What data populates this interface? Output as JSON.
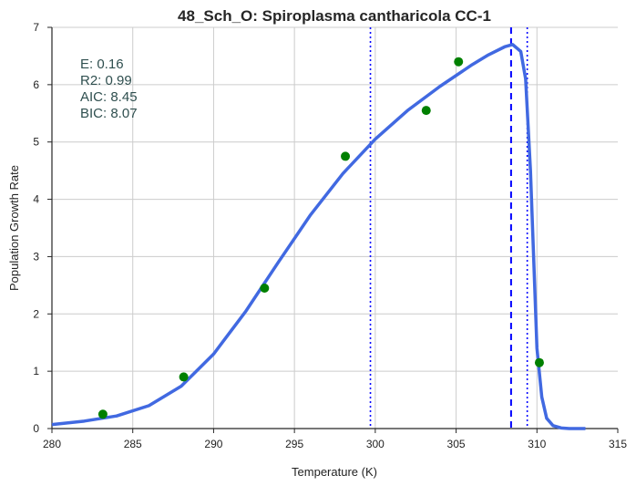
{
  "chart_data": {
    "type": "line",
    "title": "48_Sch_O: Spiroplasma cantharicola CC-1",
    "xlabel": "Temperature (K)",
    "ylabel": "Population Growth Rate",
    "xlim": [
      280,
      315
    ],
    "ylim": [
      0,
      7
    ],
    "xticks": [
      280,
      285,
      290,
      295,
      300,
      305,
      310,
      315
    ],
    "yticks": [
      0,
      1,
      2,
      3,
      4,
      5,
      6,
      7
    ],
    "xtick_labels": [
      "280",
      "285",
      "290",
      "295",
      "300",
      "305",
      "310",
      "315"
    ],
    "ytick_labels": [
      "0",
      "1",
      "2",
      "3",
      "4",
      "5",
      "6",
      "7"
    ],
    "grid": true,
    "stats": [
      "E:  0.16",
      "R2:  0.99",
      "AIC: 8.45",
      "BIC: 8.07"
    ],
    "colors": {
      "fit": "#4169e1",
      "points": "#008000",
      "vlines": "#0000ff",
      "grid": "#cccccc",
      "stats_text": "#2f4f4f"
    },
    "series": [
      {
        "kind": "points",
        "x": [
          283.15,
          288.15,
          293.15,
          298.15,
          303.15,
          305.15,
          310.15
        ],
        "y": [
          0.25,
          0.9,
          2.45,
          4.75,
          5.55,
          6.4,
          1.15
        ]
      },
      {
        "kind": "line",
        "x": [
          280.0,
          282.0,
          284.0,
          286.0,
          288.0,
          290.0,
          292.0,
          294.0,
          296.0,
          298.0,
          300.0,
          302.0,
          304.0,
          306.0,
          307.0,
          308.0,
          308.5,
          309.0,
          309.3,
          309.6,
          310.0,
          310.3,
          310.6,
          311.0,
          311.5,
          312.0,
          313.0
        ],
        "y": [
          0.07,
          0.13,
          0.22,
          0.4,
          0.74,
          1.3,
          2.05,
          2.9,
          3.73,
          4.45,
          5.05,
          5.55,
          5.97,
          6.35,
          6.52,
          6.66,
          6.7,
          6.58,
          6.1,
          4.5,
          1.4,
          0.55,
          0.18,
          0.05,
          0.01,
          0.0,
          0.0
        ]
      }
    ],
    "vlines": [
      {
        "x": 299.7,
        "style": "dotted"
      },
      {
        "x": 308.4,
        "style": "dashed"
      },
      {
        "x": 309.4,
        "style": "dotted"
      }
    ]
  }
}
